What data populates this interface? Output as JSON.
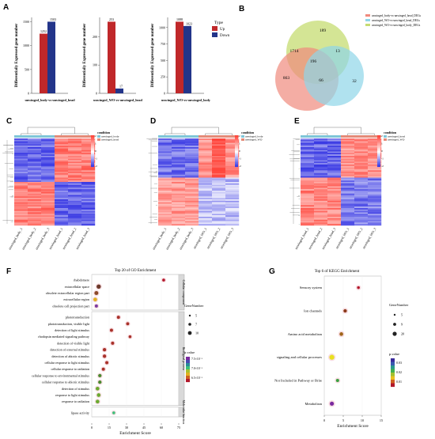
{
  "panels": {
    "A": {
      "letter": "A",
      "ylabel": "Differentially Expressed gene number",
      "legend": {
        "title": "Type",
        "up": "Up",
        "down": "Down"
      },
      "colors": {
        "up": "#c0282a",
        "down": "#23358a"
      },
      "charts": [
        {
          "comparison": "unwinged_body-vs-unwinged_head",
          "up": 1252,
          "down": 1503,
          "yticks": [
            0,
            500,
            1000,
            1500
          ]
        },
        {
          "comparison": "unwinged_WO-vs-unwinged_head",
          "up": 253,
          "down": 17,
          "yticks": [
            0,
            100,
            200
          ]
        },
        {
          "comparison": "unwinged_WO-vs-unwinged_body",
          "up": 1088,
          "down": 1023,
          "yticks": [
            0,
            250,
            500,
            750,
            1000
          ]
        }
      ]
    },
    "B": {
      "letter": "B",
      "legend": [
        "unwinged_body-vs-unwinged_head_DEGs",
        "unwinged_WO-vs-unwinged_head_DEGs",
        "unwinged_WO-vs-unwinged_body_DEGs"
      ],
      "colors": [
        "#f08a7e",
        "#8fd6e8",
        "#c6dc72"
      ],
      "regions": {
        "green_only": "189",
        "red_only": "863",
        "blue_only": "32",
        "red_green": "1714",
        "green_blue": "13",
        "red_blue": "66",
        "all": "196"
      }
    },
    "C": {
      "letter": "C",
      "legend_title": "condition",
      "groups": [
        "unwinged_body",
        "unwinged_head"
      ],
      "samples": [
        "unwinged_body_1",
        "unwinged_body_2",
        "unwinged_body_3",
        "unwinged_head_1",
        "unwinged_head_2",
        "unwinged_head_3"
      ],
      "scale": [
        "2",
        "1",
        "0",
        "-1",
        "-2"
      ]
    },
    "D": {
      "letter": "D",
      "legend_title": "condition",
      "groups": [
        "unwinged_body",
        "unwinged_WO"
      ],
      "samples": [
        "unwinged_body_1",
        "unwinged_body_2",
        "unwinged_body_3",
        "unwinged_WO_1",
        "unwinged_WO_2",
        "unwinged_WO_3"
      ],
      "scale": [
        "2",
        "1",
        "0",
        "-1",
        "-2"
      ]
    },
    "E": {
      "letter": "E",
      "legend_title": "condition",
      "groups": [
        "unwinged_head",
        "unwinged_WO"
      ],
      "samples": [
        "unwinged_head_1",
        "unwinged_head_2",
        "unwinged_head_3",
        "unwinged_WO_1",
        "unwinged_WO_2",
        "unwinged_WO_3"
      ],
      "scale": [
        "2",
        "1",
        "0",
        "-1",
        "-2"
      ]
    },
    "F": {
      "letter": "F",
      "title": "Top 20 of GO Enrichment",
      "xlabel": "Enrichment Score",
      "xticks": [
        0,
        15,
        30,
        45,
        60,
        75
      ],
      "categories": [
        "Cellular component",
        "Biological process",
        "Molecular function"
      ],
      "legend": {
        "size_title": "GeneNumber",
        "sizes": [
          "5",
          "7",
          "10"
        ],
        "color_title": "p.value",
        "color_ticks": [
          "7.5×10⁻⁶",
          "7.0×10⁻⁶",
          "6.5×10⁻⁶"
        ]
      }
    },
    "G": {
      "letter": "G",
      "title": "Top 6 of KEGG Enrichment",
      "xlabel": "Enrichment Score",
      "xticks": [
        0,
        5,
        10,
        15
      ],
      "legend": {
        "size_title": "GeneNumber",
        "sizes": [
          "5",
          "9",
          "20"
        ],
        "color_title": "p.value",
        "color_ticks": [
          "0.03",
          "0.02",
          "0.01"
        ]
      }
    }
  },
  "chart_data": [
    {
      "type": "scatter",
      "title": "Top 20 of GO Enrichment",
      "xlabel": "Enrichment Score",
      "xlim": [
        0,
        75
      ],
      "points": [
        {
          "term": "rhabdomere",
          "category": "Cellular component",
          "x": 62,
          "size": 5,
          "color": "#b2182b"
        },
        {
          "term": "extracellular space",
          "category": "Cellular component",
          "x": 6,
          "size": 10,
          "color": "#6b3a2a"
        },
        {
          "term": "obsolete extracellular region part",
          "category": "Cellular component",
          "x": 4,
          "size": 9,
          "color": "#8b4a2a"
        },
        {
          "term": "extracellular region",
          "category": "Cellular component",
          "x": 3,
          "size": 8,
          "color": "#e0b020"
        },
        {
          "term": "obsolete cell projection part",
          "category": "Cellular component",
          "x": 4,
          "size": 6,
          "color": "#7a3ba0"
        },
        {
          "term": "phototransduction",
          "category": "Biological process",
          "x": 23,
          "size": 6,
          "color": "#a8322a"
        },
        {
          "term": "phototransduction, visible light",
          "category": "Biological process",
          "x": 31,
          "size": 6,
          "color": "#a8322a"
        },
        {
          "term": "detection of light stimulus",
          "category": "Biological process",
          "x": 17,
          "size": 6,
          "color": "#a8322a"
        },
        {
          "term": "rhodopsin mediated signaling pathway",
          "category": "Biological process",
          "x": 33,
          "size": 5,
          "color": "#a8322a"
        },
        {
          "term": "detection of visible light",
          "category": "Biological process",
          "x": 18,
          "size": 6,
          "color": "#a8322a"
        },
        {
          "term": "detection of external stimulus",
          "category": "Biological process",
          "x": 11,
          "size": 7,
          "color": "#a8322a"
        },
        {
          "term": "detection of abiotic stimulus",
          "category": "Biological process",
          "x": 11,
          "size": 7,
          "color": "#a8322a"
        },
        {
          "term": "cellular response to light stimulus",
          "category": "Biological process",
          "x": 13,
          "size": 6,
          "color": "#a8322a"
        },
        {
          "term": "cellular response to radiation",
          "category": "Biological process",
          "x": 10,
          "size": 6,
          "color": "#a8322a"
        },
        {
          "term": "cellular response to environmental stimulus",
          "category": "Biological process",
          "x": 7,
          "size": 7,
          "color": "#4a8a30"
        },
        {
          "term": "cellular response to abiotic stimulus",
          "category": "Biological process",
          "x": 7,
          "size": 7,
          "color": "#4a8a30"
        },
        {
          "term": "detection of stimulus",
          "category": "Biological process",
          "x": 5,
          "size": 8,
          "color": "#6aaa30"
        },
        {
          "term": "response to light stimulus",
          "category": "Biological process",
          "x": 6,
          "size": 8,
          "color": "#6aaa30"
        },
        {
          "term": "response to radiation",
          "category": "Biological process",
          "x": 5,
          "size": 8,
          "color": "#6aaa30"
        },
        {
          "term": "lipase activity",
          "category": "Molecular function",
          "x": 19,
          "size": 5,
          "color": "#3cc07a"
        }
      ]
    },
    {
      "type": "scatter",
      "title": "Top 6 of KEGG Enrichment",
      "xlabel": "Enrichment Score",
      "xlim": [
        0,
        15
      ],
      "points": [
        {
          "term": "Sensory system",
          "x": 9,
          "size": 6,
          "color": "#b2182b"
        },
        {
          "term": "Ion channels",
          "x": 5.5,
          "size": 9,
          "color": "#8b3a1a"
        },
        {
          "term": "Amino acid metabolism",
          "x": 4.5,
          "size": 10,
          "color": "#a0661a"
        },
        {
          "term": "signaling and cellular processes",
          "x": 2,
          "size": 16,
          "color": "#e8e020"
        },
        {
          "term": "Not Included in Pathway or Brite",
          "x": 3.5,
          "size": 8,
          "color": "#3aa040"
        },
        {
          "term": "Metabolism",
          "x": 2,
          "size": 12,
          "color": "#7a2aa0"
        }
      ]
    }
  ]
}
